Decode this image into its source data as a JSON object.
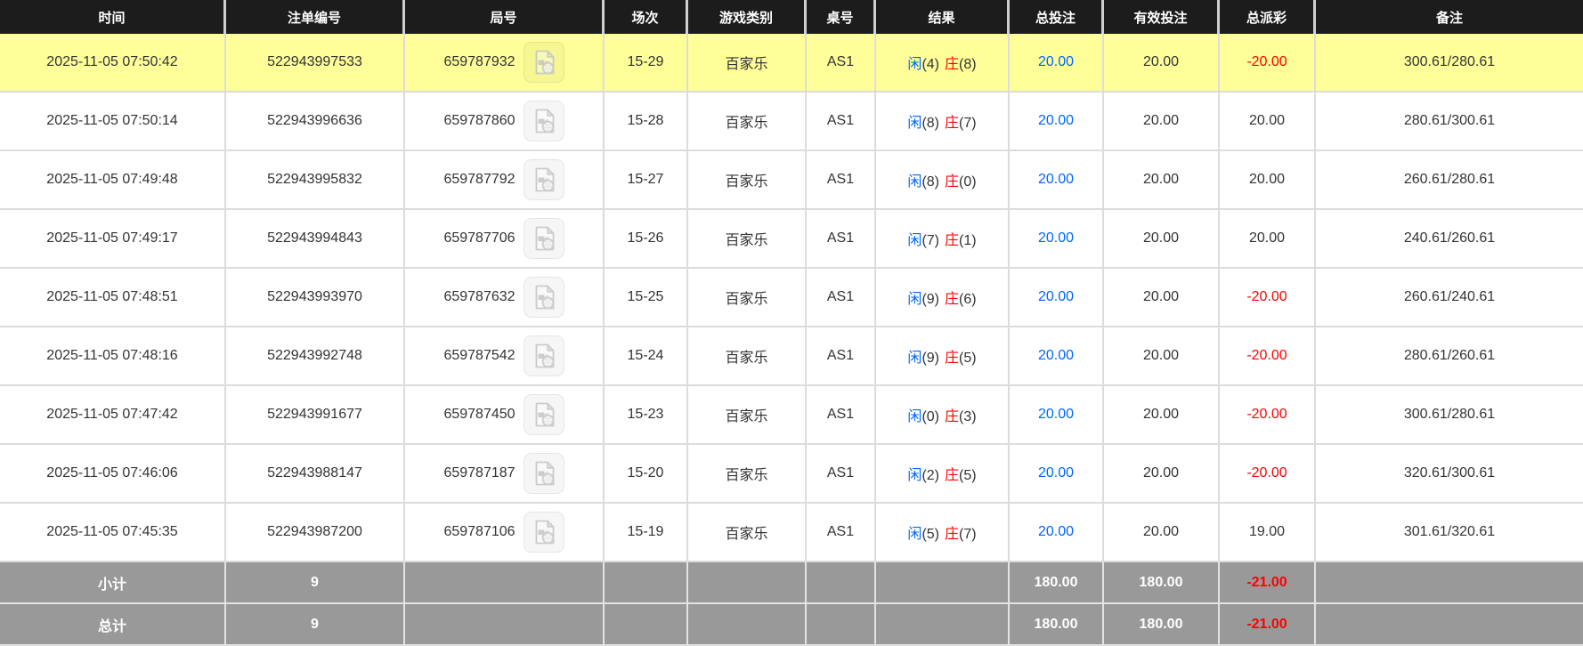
{
  "colors": {
    "header_bg": "#1c1c1c",
    "highlight_row_bg": "#ffff99",
    "footer_bg": "#999999",
    "accent_blue": "#0066ff",
    "negative_red": "#ff0000",
    "text": "#333333"
  },
  "table": {
    "headers": [
      {
        "key": "time",
        "label": "时间"
      },
      {
        "key": "order",
        "label": "注单编号"
      },
      {
        "key": "game",
        "label": "局号"
      },
      {
        "key": "session",
        "label": "场次"
      },
      {
        "key": "game_type",
        "label": "游戏类别"
      },
      {
        "key": "table_no",
        "label": "桌号"
      },
      {
        "key": "result",
        "label": "结果"
      },
      {
        "key": "total_bet",
        "label": "总投注"
      },
      {
        "key": "valid_bet",
        "label": "有效投注"
      },
      {
        "key": "payout",
        "label": "总派彩"
      },
      {
        "key": "remark",
        "label": "备注"
      }
    ],
    "video_icon_name": "video-file-icon",
    "rows": [
      {
        "time": "2025-11-05 07:50:42",
        "order": "522943997533",
        "game": "659787932",
        "session": "15-29",
        "game_type": "百家乐",
        "table_no": "AS1",
        "result": {
          "player_label": "闲",
          "player_score": "(4)",
          "banker_label": "庄",
          "banker_score": "(8)"
        },
        "total_bet": "20.00",
        "valid_bet": "20.00",
        "payout": "-20.00",
        "remark": "300.61/280.61",
        "highlighted": true
      },
      {
        "time": "2025-11-05 07:50:14",
        "order": "522943996636",
        "game": "659787860",
        "session": "15-28",
        "game_type": "百家乐",
        "table_no": "AS1",
        "result": {
          "player_label": "闲",
          "player_score": "(8)",
          "banker_label": "庄",
          "banker_score": "(7)"
        },
        "total_bet": "20.00",
        "valid_bet": "20.00",
        "payout": "20.00",
        "remark": "280.61/300.61",
        "highlighted": false
      },
      {
        "time": "2025-11-05 07:49:48",
        "order": "522943995832",
        "game": "659787792",
        "session": "15-27",
        "game_type": "百家乐",
        "table_no": "AS1",
        "result": {
          "player_label": "闲",
          "player_score": "(8)",
          "banker_label": "庄",
          "banker_score": "(0)"
        },
        "total_bet": "20.00",
        "valid_bet": "20.00",
        "payout": "20.00",
        "remark": "260.61/280.61",
        "highlighted": false
      },
      {
        "time": "2025-11-05 07:49:17",
        "order": "522943994843",
        "game": "659787706",
        "session": "15-26",
        "game_type": "百家乐",
        "table_no": "AS1",
        "result": {
          "player_label": "闲",
          "player_score": "(7)",
          "banker_label": "庄",
          "banker_score": "(1)"
        },
        "total_bet": "20.00",
        "valid_bet": "20.00",
        "payout": "20.00",
        "remark": "240.61/260.61",
        "highlighted": false
      },
      {
        "time": "2025-11-05 07:48:51",
        "order": "522943993970",
        "game": "659787632",
        "session": "15-25",
        "game_type": "百家乐",
        "table_no": "AS1",
        "result": {
          "player_label": "闲",
          "player_score": "(9)",
          "banker_label": "庄",
          "banker_score": "(6)"
        },
        "total_bet": "20.00",
        "valid_bet": "20.00",
        "payout": "-20.00",
        "remark": "260.61/240.61",
        "highlighted": false
      },
      {
        "time": "2025-11-05 07:48:16",
        "order": "522943992748",
        "game": "659787542",
        "session": "15-24",
        "game_type": "百家乐",
        "table_no": "AS1",
        "result": {
          "player_label": "闲",
          "player_score": "(9)",
          "banker_label": "庄",
          "banker_score": "(5)"
        },
        "total_bet": "20.00",
        "valid_bet": "20.00",
        "payout": "-20.00",
        "remark": "280.61/260.61",
        "highlighted": false
      },
      {
        "time": "2025-11-05 07:47:42",
        "order": "522943991677",
        "game": "659787450",
        "session": "15-23",
        "game_type": "百家乐",
        "table_no": "AS1",
        "result": {
          "player_label": "闲",
          "player_score": "(0)",
          "banker_label": "庄",
          "banker_score": "(3)"
        },
        "total_bet": "20.00",
        "valid_bet": "20.00",
        "payout": "-20.00",
        "remark": "300.61/280.61",
        "highlighted": false
      },
      {
        "time": "2025-11-05 07:46:06",
        "order": "522943988147",
        "game": "659787187",
        "session": "15-20",
        "game_type": "百家乐",
        "table_no": "AS1",
        "result": {
          "player_label": "闲",
          "player_score": "(2)",
          "banker_label": "庄",
          "banker_score": "(5)"
        },
        "total_bet": "20.00",
        "valid_bet": "20.00",
        "payout": "-20.00",
        "remark": "320.61/300.61",
        "highlighted": false
      },
      {
        "time": "2025-11-05 07:45:35",
        "order": "522943987200",
        "game": "659787106",
        "session": "15-19",
        "game_type": "百家乐",
        "table_no": "AS1",
        "result": {
          "player_label": "闲",
          "player_score": "(5)",
          "banker_label": "庄",
          "banker_score": "(7)"
        },
        "total_bet": "20.00",
        "valid_bet": "20.00",
        "payout": "19.00",
        "remark": "301.61/320.61",
        "highlighted": false
      }
    ],
    "footer_rows": [
      {
        "label": "小计",
        "count": "9",
        "total_bet": "180.00",
        "valid_bet": "180.00",
        "payout": "-21.00"
      },
      {
        "label": "总计",
        "count": "9",
        "total_bet": "180.00",
        "valid_bet": "180.00",
        "payout": "-21.00"
      }
    ]
  }
}
